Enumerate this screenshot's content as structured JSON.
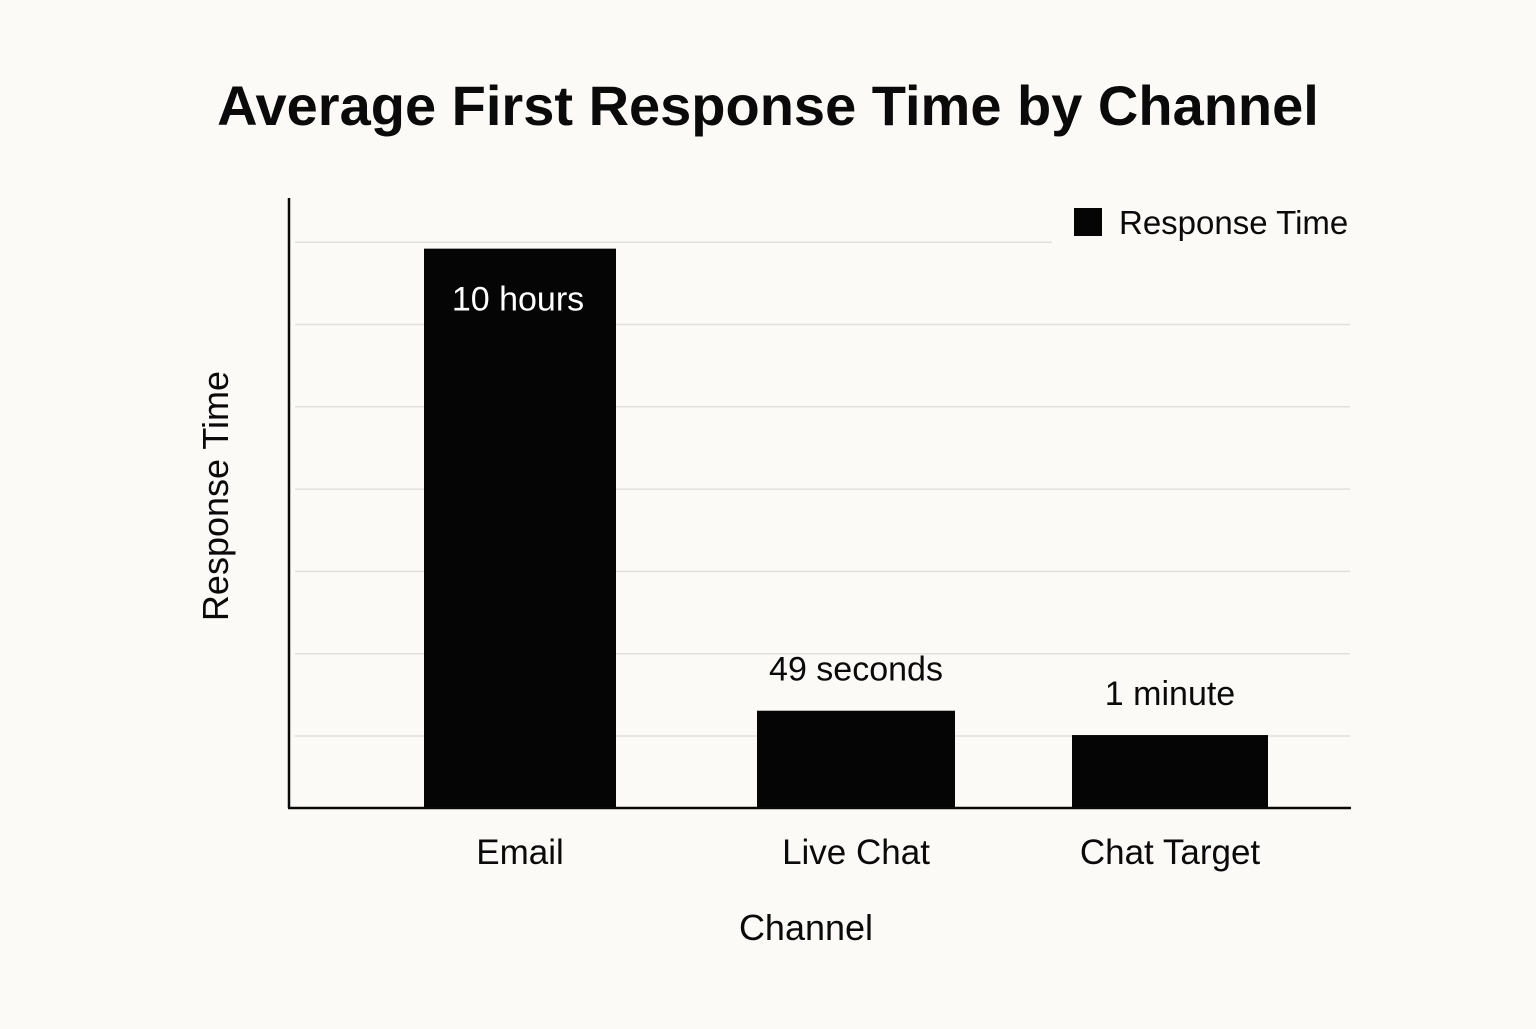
{
  "chart_data": {
    "type": "bar",
    "title": "Average First Response Time by Channel",
    "xlabel": "Channel",
    "ylabel": "Response Time",
    "categories": [
      "Email",
      "Live Chat",
      "Chat Target"
    ],
    "series": [
      {
        "name": "Response Time",
        "values": [
          36000,
          49,
          60
        ],
        "labels": [
          "10 hours",
          "49 seconds",
          "1 minute"
        ]
      }
    ],
    "display_fraction": [
      0.92,
      0.16,
      0.12
    ],
    "grid": true,
    "legend": "top-right",
    "colors": {
      "bar": "#050505",
      "background": "#fbfaf6",
      "grid": "#e2e0db",
      "axis": "#0a0a0a",
      "label_inside": "#ffffff"
    }
  }
}
